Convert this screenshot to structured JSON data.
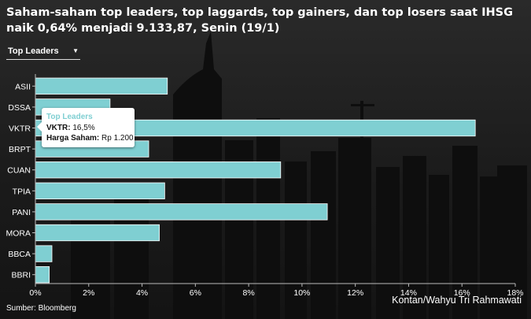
{
  "title": "Saham-saham top leaders, top laggards, top gainers, dan top losers saat IHSG naik 0,64% menjadi 9.133,87, Senin (19/1)",
  "dropdown": {
    "selected": "Top Leaders",
    "caret": "▼"
  },
  "tooltip": {
    "title": "Top Leaders",
    "stock_label": "VKTR:",
    "stock_value": "16,5%",
    "price_label": "Harga Saham:",
    "price_value": "Rp 1.200"
  },
  "source": "Sumber: Bloomberg",
  "credit": "Kontan/Wahyu Tri Rahmawati",
  "colors": {
    "bar": "#7fcfd2",
    "bar_stroke": "#ffffff",
    "axis": "#bbbbbb"
  },
  "chart_data": {
    "type": "bar",
    "orientation": "horizontal",
    "categories": [
      "ASII",
      "DSSA",
      "VKTR",
      "BRPT",
      "CUAN",
      "TPIA",
      "PANI",
      "MORA",
      "BBCA",
      "BBRI"
    ],
    "values": [
      4.95,
      2.8,
      16.5,
      4.25,
      9.2,
      4.85,
      10.95,
      4.65,
      0.62,
      0.52
    ],
    "xlim": [
      0,
      18
    ],
    "xticks": [
      0,
      2,
      4,
      6,
      8,
      10,
      12,
      14,
      16,
      18
    ],
    "xtick_labels": [
      "0%",
      "2%",
      "4%",
      "6%",
      "8%",
      "10%",
      "12%",
      "14%",
      "16%",
      "18%"
    ],
    "grid": false
  }
}
